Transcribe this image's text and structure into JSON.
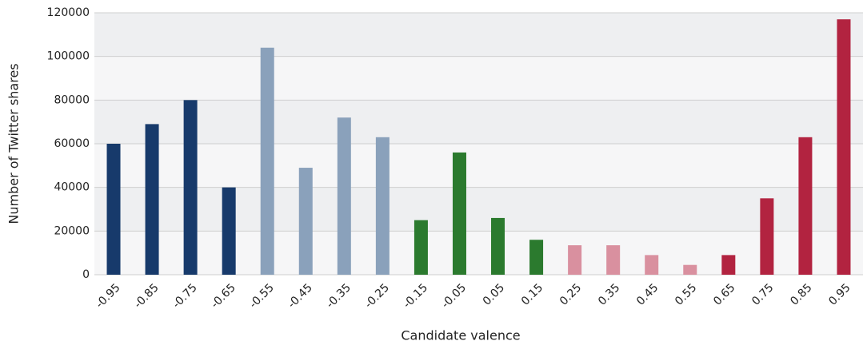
{
  "chart_data": {
    "type": "bar",
    "xlabel": "Candidate valence",
    "ylabel": "Number of Twitter shares",
    "categories": [
      "-0.95",
      "-0.85",
      "-0.75",
      "-0.65",
      "-0.55",
      "-0.45",
      "-0.35",
      "-0.25",
      "-0.15",
      "-0.05",
      "0.05",
      "0.15",
      "0.25",
      "0.35",
      "0.45",
      "0.55",
      "0.65",
      "0.75",
      "0.85",
      "0.95"
    ],
    "values": [
      60000,
      69000,
      80000,
      40000,
      104000,
      49000,
      72000,
      63000,
      25000,
      56000,
      26000,
      16000,
      13500,
      13500,
      9000,
      4500,
      9000,
      35000,
      63000,
      117000
    ],
    "colors": [
      "#173a6b",
      "#173a6b",
      "#173a6b",
      "#173a6b",
      "#8aa1bb",
      "#8aa1bb",
      "#8aa1bb",
      "#8aa1bb",
      "#2b7a2e",
      "#2b7a2e",
      "#2b7a2e",
      "#2b7a2e",
      "#d9909f",
      "#d9909f",
      "#d9909f",
      "#d9909f",
      "#b22340",
      "#b22340",
      "#b22340",
      "#b22340"
    ],
    "ylim": [
      0,
      120000
    ],
    "yticks": [
      0,
      20000,
      40000,
      60000,
      80000,
      100000,
      120000
    ],
    "grid": true
  }
}
